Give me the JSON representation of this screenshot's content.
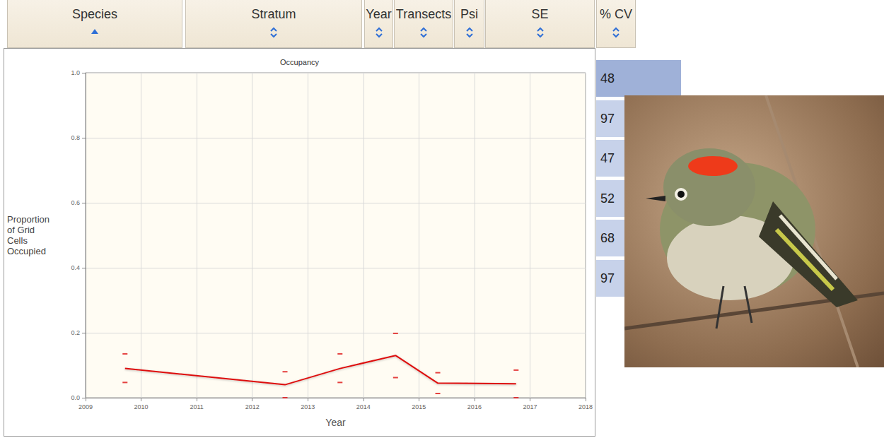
{
  "table": {
    "header": [
      "Species",
      "Stratum",
      "Year",
      "Transects",
      "Psi",
      "SE",
      "% CV"
    ],
    "cv_values": [
      48,
      97,
      47,
      52,
      68,
      97
    ]
  },
  "chart_data": {
    "type": "line",
    "title": "Occupancy",
    "x_label": "Year",
    "y_label": "Proportion of Grid Cells Occupied",
    "x": [
      2009.71,
      2012.59,
      2013.58,
      2014.58,
      2015.34,
      2016.75
    ],
    "values": [
      0.09,
      0.04,
      0.09,
      0.13,
      0.045,
      0.043
    ],
    "lower": [
      0.047,
      0.0,
      0.047,
      0.062,
      0.013,
      0.0
    ],
    "upper": [
      0.135,
      0.08,
      0.135,
      0.198,
      0.077,
      0.085
    ],
    "color": "#dd1111",
    "xlim": [
      2009,
      2018
    ],
    "xticks": [
      2009,
      2010,
      2011,
      2012,
      2013,
      2014,
      2015,
      2016,
      2017,
      2018
    ],
    "ylim": [
      0,
      1
    ],
    "yticks": [
      {
        "value": 0,
        "label": "0.0"
      },
      {
        "value": 0.2,
        "label": "0.2"
      },
      {
        "value": 0.4,
        "label": "0.4"
      },
      {
        "value": 0.6,
        "label": "0.6"
      },
      {
        "value": 0.8,
        "label": "0.8"
      },
      {
        "value": 1,
        "label": "1.0"
      }
    ],
    "grid": true
  }
}
